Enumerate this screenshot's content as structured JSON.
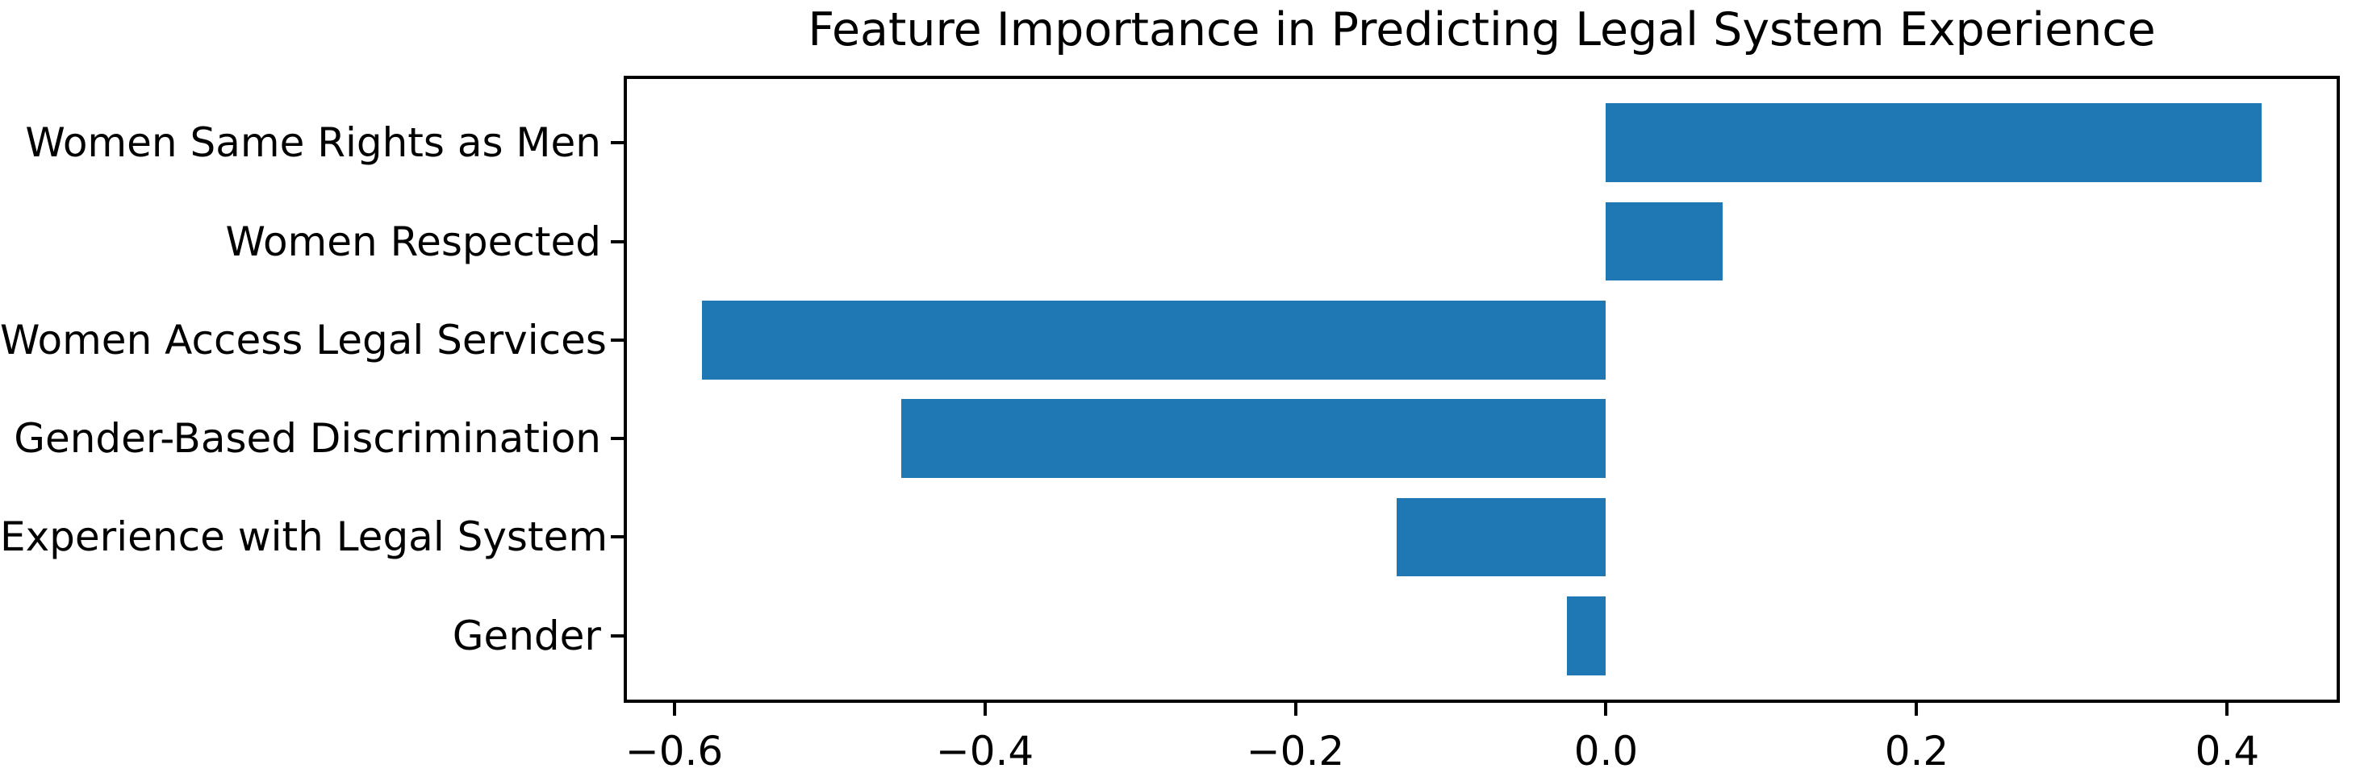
{
  "chart_data": {
    "type": "bar",
    "orientation": "horizontal",
    "title": "Feature Importance in Predicting Legal System Experience",
    "categories": [
      "Women Same Rights as Men",
      "Women Respected",
      "Women Access Legal Services",
      "Gender-Based Discrimination",
      "Experience with Legal System",
      "Gender"
    ],
    "values": [
      0.422,
      0.075,
      -0.582,
      -0.454,
      -0.135,
      -0.025
    ],
    "bar_color": "#1f77b4",
    "axis_color": "#000000",
    "text_color": "#000000",
    "xlim": [
      -0.6325,
      0.4725
    ],
    "xticks": [
      {
        "value": -0.6,
        "label": "−0.6"
      },
      {
        "value": -0.4,
        "label": "−0.4"
      },
      {
        "value": -0.2,
        "label": "−0.2"
      },
      {
        "value": 0.0,
        "label": "0.0"
      },
      {
        "value": 0.2,
        "label": "0.2"
      },
      {
        "value": 0.4,
        "label": "0.4"
      }
    ],
    "xlabel": "",
    "ylabel": "",
    "grid": false,
    "legend": null,
    "bar_height_fraction": 0.8,
    "y_outer_margin_units": 0.68
  }
}
